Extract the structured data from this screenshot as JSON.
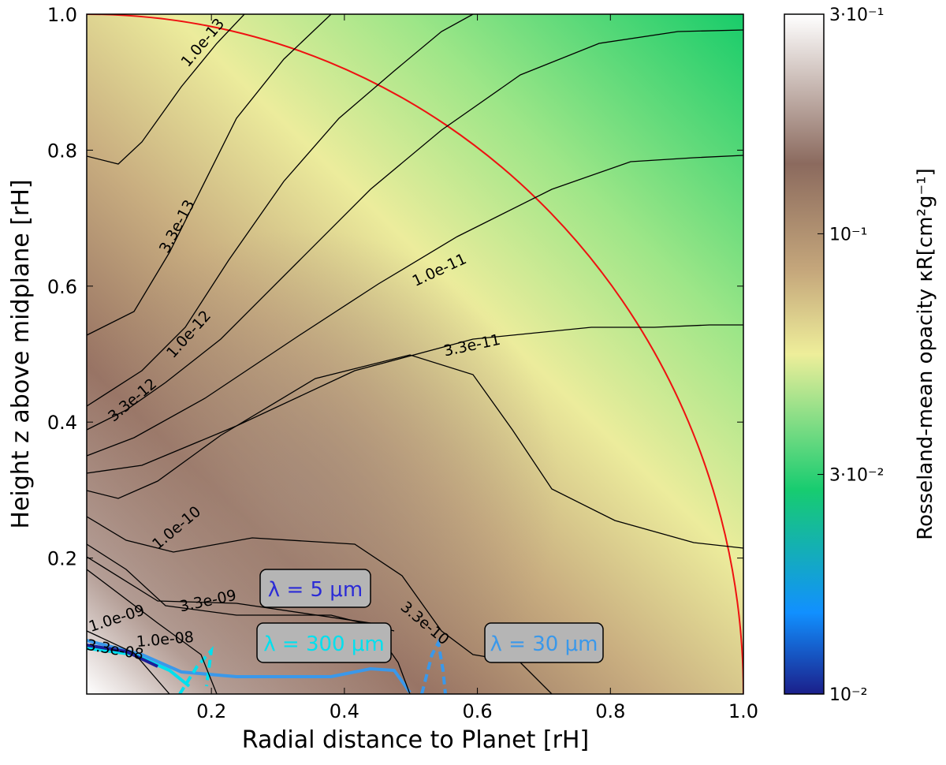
{
  "chart_data": {
    "type": "contour",
    "x_label": "Radial distance to Planet [rH]",
    "y_label": "Height z above midplane [rH]",
    "xlim": [
      0.0125,
      1.0
    ],
    "ylim": [
      0.0,
      1.0
    ],
    "xticks": [
      0.2,
      0.4,
      0.6,
      0.8,
      {
        "value": 1.0,
        "label": "1.0"
      }
    ],
    "yticks": [
      0.2,
      0.4,
      0.6,
      0.8,
      {
        "value": 1.0,
        "label": "1.0"
      }
    ],
    "contour_color": "#000000",
    "contour_levels": [
      {
        "value": 1e-13,
        "label": "1.0e-13"
      },
      {
        "value": 3.3e-13,
        "label": "3.3e-13"
      },
      {
        "value": 1e-12,
        "label": "1.0e-12"
      },
      {
        "value": 3.3e-12,
        "label": "3.3e-12"
      },
      {
        "value": 1e-11,
        "label": "1.0e-11"
      },
      {
        "value": 3.3e-11,
        "label": "3.3e-11"
      },
      {
        "value": 1e-10,
        "label": "1.0e-10"
      },
      {
        "value": 3.3e-10,
        "label": "3.3e-10"
      },
      {
        "value": 1e-09,
        "label": "1.0e-09"
      },
      {
        "value": 3.3e-09,
        "label": "3.3e-09"
      },
      {
        "value": 1e-08,
        "label": "1.0e-08"
      },
      {
        "value": 3.3e-08,
        "label": "3.3e-08"
      }
    ],
    "annotations": [
      {
        "text": "λ = 5 μm",
        "color": "#2b2bd6"
      },
      {
        "text": "λ = 300 μm",
        "color": "#00e0ee"
      },
      {
        "text": "λ = 30 μm",
        "color": "#3a98ea"
      }
    ],
    "colorbar": {
      "label": "Rosseland-mean opacity κR[cm²g⁻¹]",
      "scale": "log",
      "lim": [
        0.01,
        0.3
      ],
      "ticks": [
        {
          "value": 0.3,
          "label": "3·10⁻¹"
        },
        {
          "value": 0.1,
          "label": "10⁻¹"
        },
        {
          "value": 0.03,
          "label": "3·10⁻²"
        },
        {
          "value": 0.01,
          "label": "10⁻²"
        }
      ]
    }
  }
}
